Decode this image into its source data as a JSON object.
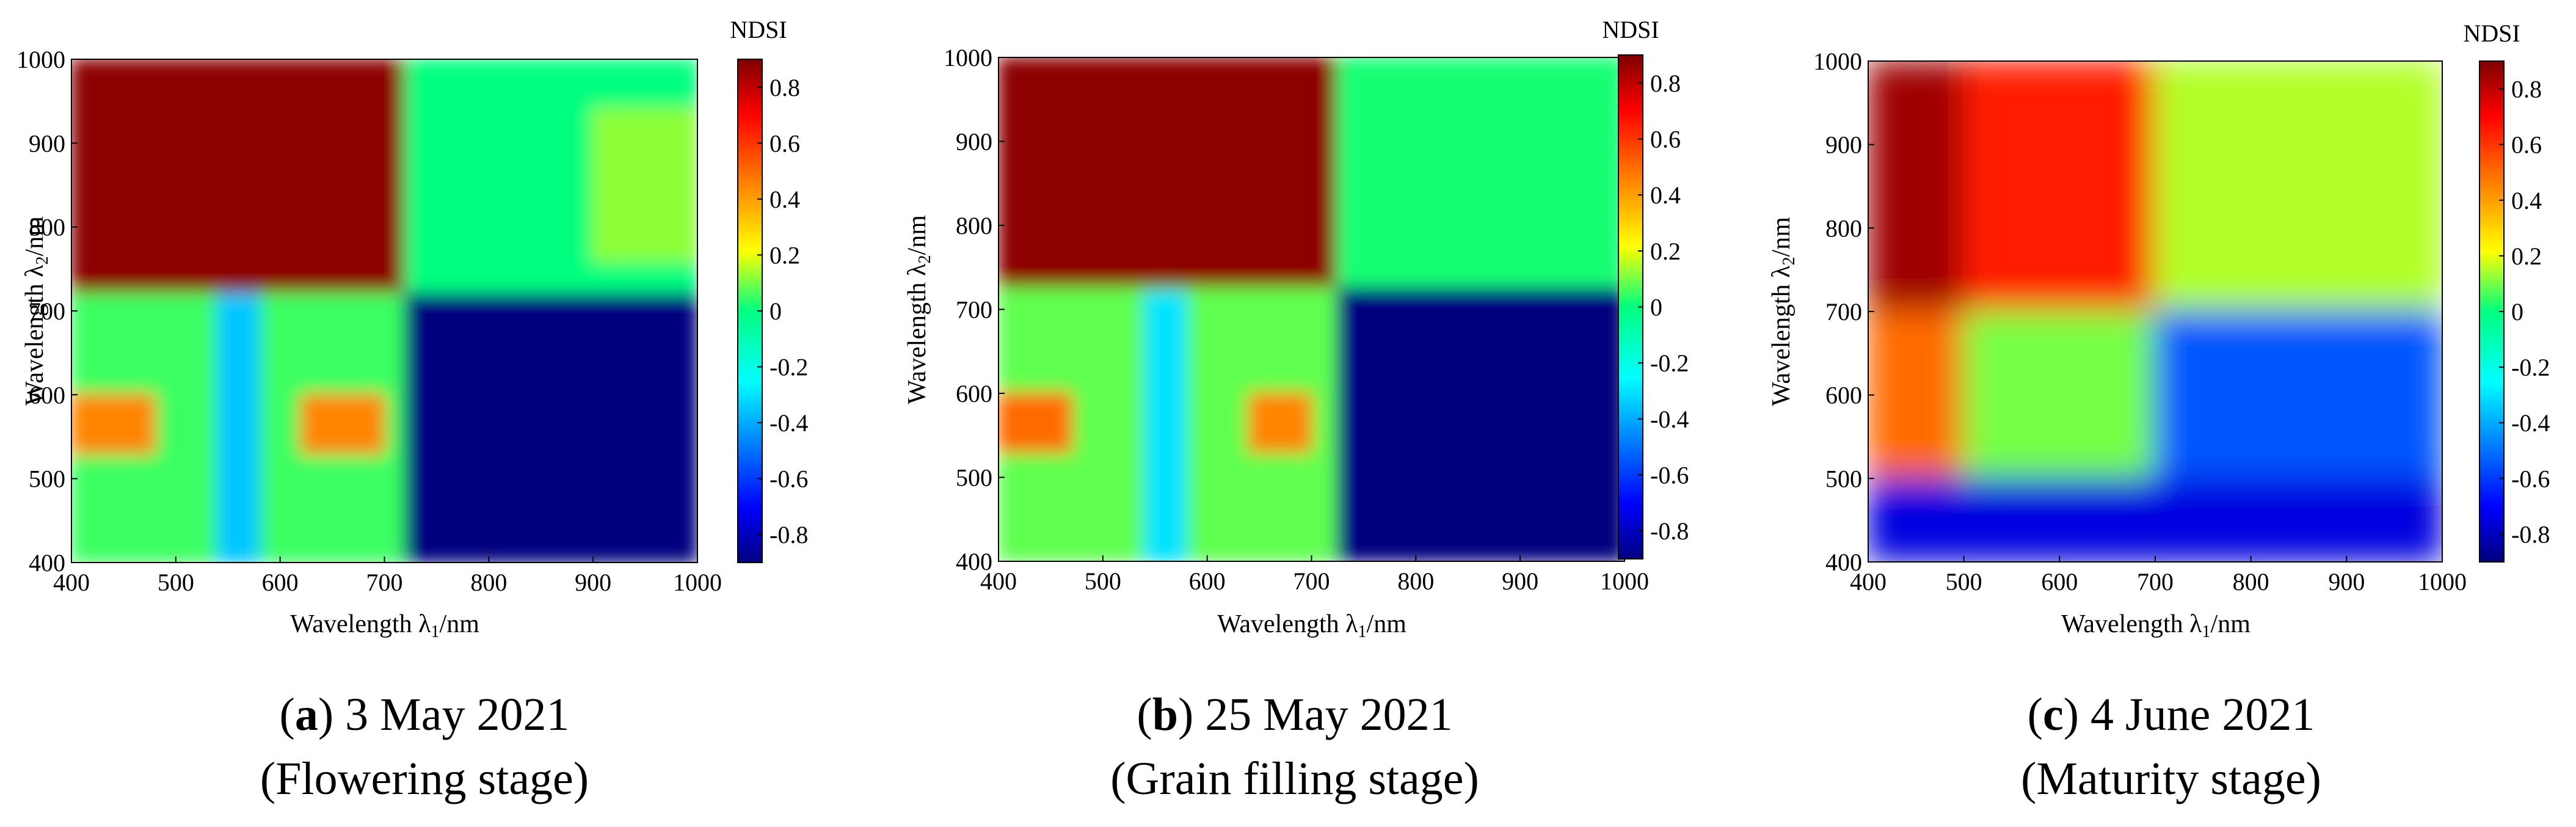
{
  "chart_data": [
    {
      "type": "heatmap",
      "panel_letter": "a",
      "caption_date": "3 May 2021",
      "caption_stage": "(Flowering stage)",
      "xlabel": "Wavelength λ1/nm",
      "ylabel": "Wavelength λ2/nm",
      "colorbar_label": "NDSI",
      "xlim": [
        400,
        1000
      ],
      "ylim": [
        400,
        1000
      ],
      "x_ticks": [
        400,
        500,
        600,
        700,
        800,
        900,
        1000
      ],
      "y_ticks": [
        400,
        500,
        600,
        700,
        800,
        900,
        1000
      ],
      "colorbar_ticks": [
        "0.8",
        "0.6",
        "0.4",
        "0.2",
        "0",
        "-0.2",
        "-0.4",
        "-0.6",
        "-0.8"
      ],
      "clim": [
        -0.9,
        0.9
      ],
      "regions": [
        {
          "x": [
            400,
            720
          ],
          "y": [
            720,
            1000
          ],
          "value": 0.88
        },
        {
          "x": [
            720,
            1000
          ],
          "y": [
            720,
            1000
          ],
          "value": 0.0
        },
        {
          "x": [
            900,
            1000
          ],
          "y": [
            760,
            940
          ],
          "value": 0.12
        },
        {
          "x": [
            400,
            720
          ],
          "y": [
            400,
            720
          ],
          "value": 0.05
        },
        {
          "x": [
            400,
            480
          ],
          "y": [
            530,
            600
          ],
          "value": 0.45
        },
        {
          "x": [
            620,
            700
          ],
          "y": [
            530,
            600
          ],
          "value": 0.45
        },
        {
          "x": [
            540,
            580
          ],
          "y": [
            400,
            720
          ],
          "value": -0.35
        },
        {
          "x": [
            720,
            1000
          ],
          "y": [
            400,
            720
          ],
          "value": -0.9
        }
      ]
    },
    {
      "type": "heatmap",
      "panel_letter": "b",
      "caption_date": "25 May 2021",
      "caption_stage": "(Grain filling stage)",
      "xlabel": "Wavelength λ1/nm",
      "ylabel": "Wavelength λ2/nm",
      "colorbar_label": "NDSI",
      "xlim": [
        400,
        1000
      ],
      "ylim": [
        400,
        1000
      ],
      "x_ticks": [
        400,
        500,
        600,
        700,
        800,
        900,
        1000
      ],
      "y_ticks": [
        400,
        500,
        600,
        700,
        800,
        900,
        1000
      ],
      "colorbar_ticks": [
        "0.8",
        "0.6",
        "0.4",
        "0.2",
        "0",
        "-0.2",
        "-0.4",
        "-0.6",
        "-0.8"
      ],
      "clim": [
        -0.9,
        0.9
      ],
      "regions": [
        {
          "x": [
            400,
            725
          ],
          "y": [
            725,
            1000
          ],
          "value": 0.88
        },
        {
          "x": [
            725,
            1000
          ],
          "y": [
            725,
            1000
          ],
          "value": 0.02
        },
        {
          "x": [
            400,
            725
          ],
          "y": [
            400,
            725
          ],
          "value": 0.08
        },
        {
          "x": [
            400,
            470
          ],
          "y": [
            530,
            600
          ],
          "value": 0.5
        },
        {
          "x": [
            640,
            700
          ],
          "y": [
            530,
            600
          ],
          "value": 0.45
        },
        {
          "x": [
            540,
            580
          ],
          "y": [
            400,
            720
          ],
          "value": -0.3
        },
        {
          "x": [
            725,
            1000
          ],
          "y": [
            400,
            725
          ],
          "value": -0.9
        }
      ]
    },
    {
      "type": "heatmap",
      "panel_letter": "c",
      "caption_date": "4 June 2021",
      "caption_stage": "(Maturity stage)",
      "xlabel": "Wavelength λ1/nm",
      "ylabel": "Wavelength λ2/nm",
      "colorbar_label": "NDSI",
      "xlim": [
        400,
        1000
      ],
      "ylim": [
        400,
        1000
      ],
      "x_ticks": [
        400,
        500,
        600,
        700,
        800,
        900,
        1000
      ],
      "y_ticks": [
        400,
        500,
        600,
        700,
        800,
        900,
        1000
      ],
      "colorbar_ticks": [
        "0.8",
        "0.6",
        "0.4",
        "0.2",
        "0",
        "-0.2",
        "-0.4",
        "-0.6",
        "-0.8"
      ],
      "clim": [
        -0.9,
        0.9
      ],
      "regions": [
        {
          "x": [
            400,
            500
          ],
          "y": [
            700,
            1000
          ],
          "value": 0.85
        },
        {
          "x": [
            500,
            700
          ],
          "y": [
            700,
            1000
          ],
          "value": 0.65
        },
        {
          "x": [
            700,
            1000
          ],
          "y": [
            700,
            1000
          ],
          "value": 0.15
        },
        {
          "x": [
            400,
            500
          ],
          "y": [
            500,
            700
          ],
          "value": 0.5
        },
        {
          "x": [
            500,
            700
          ],
          "y": [
            500,
            700
          ],
          "value": 0.1
        },
        {
          "x": [
            700,
            1000
          ],
          "y": [
            500,
            700
          ],
          "value": -0.55
        },
        {
          "x": [
            400,
            1000
          ],
          "y": [
            400,
            500
          ],
          "value": -0.75
        }
      ]
    }
  ]
}
